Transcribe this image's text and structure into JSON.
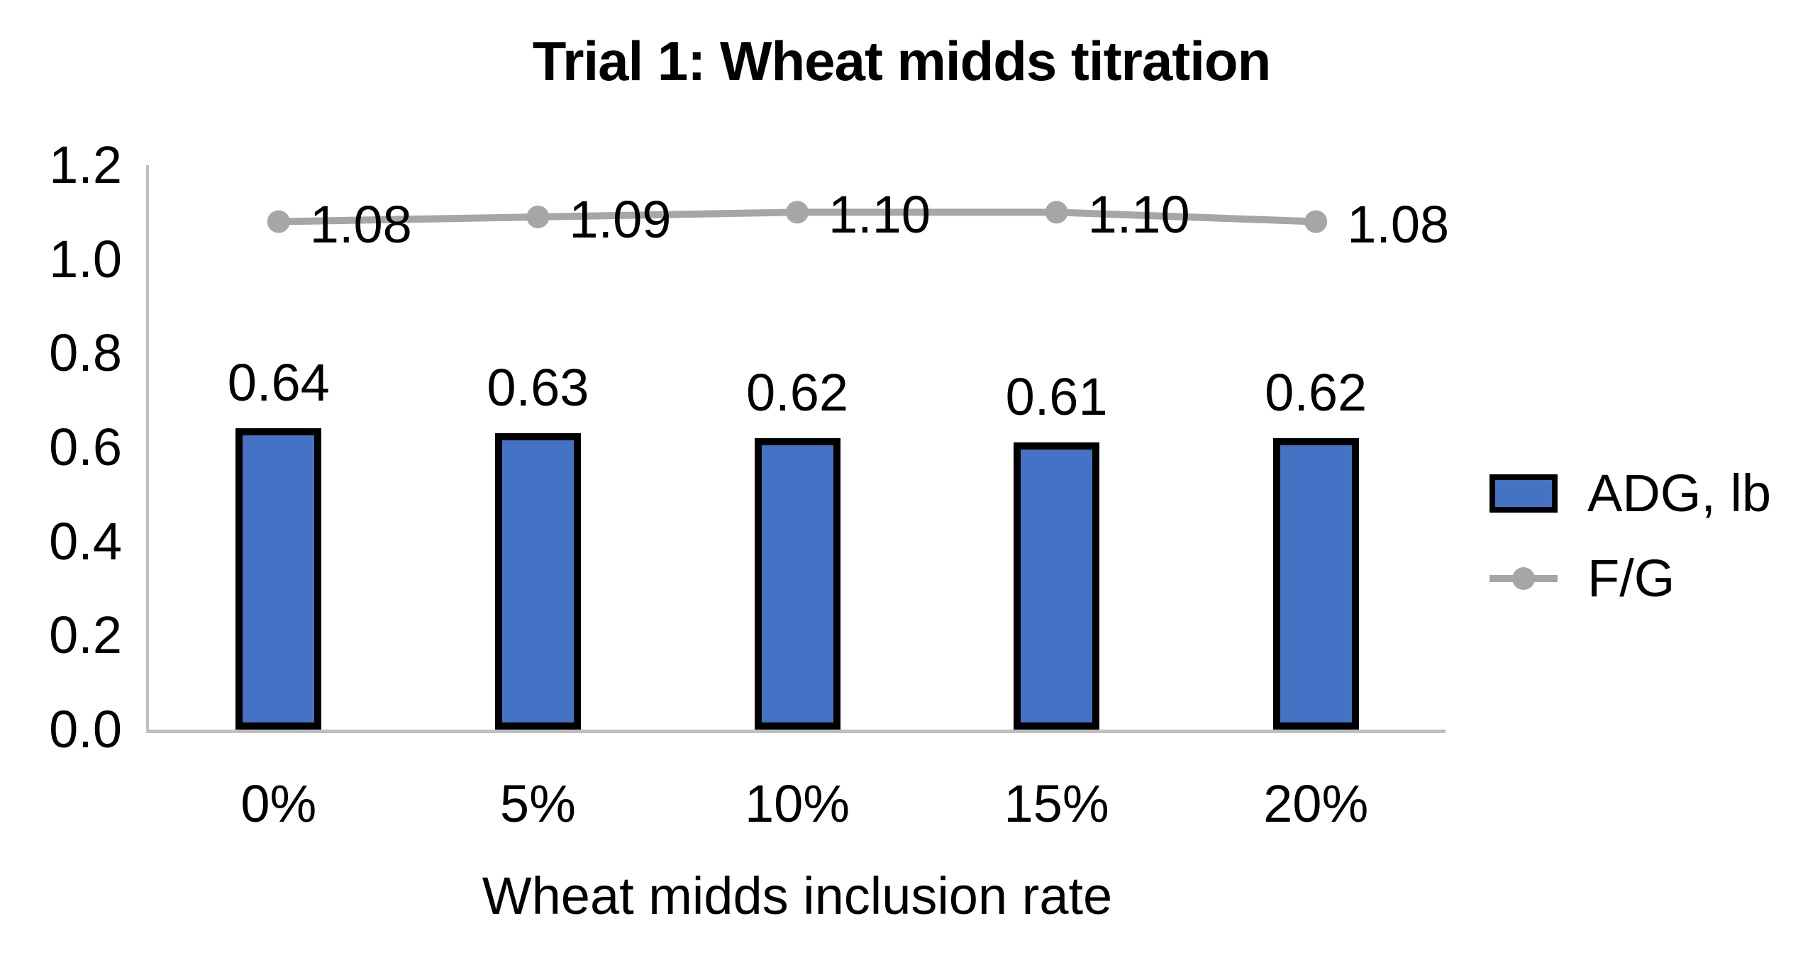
{
  "chart_data": {
    "type": "bar",
    "subtype": "bar-line-combo",
    "title": "Trial 1: Wheat midds titration",
    "xlabel": "Wheat midds inclusion rate",
    "ylabel": "",
    "categories": [
      "0%",
      "5%",
      "10%",
      "15%",
      "20%"
    ],
    "series": [
      {
        "name": "ADG, lb",
        "type": "bar",
        "values": [
          0.64,
          0.63,
          0.62,
          0.61,
          0.62
        ],
        "labels": [
          "0.64",
          "0.63",
          "0.62",
          "0.61",
          "0.62"
        ],
        "color": "#4472C4",
        "border_color": "#000000"
      },
      {
        "name": "F/G",
        "type": "line",
        "values": [
          1.08,
          1.09,
          1.1,
          1.1,
          1.08
        ],
        "labels": [
          "1.08",
          "1.09",
          "1.10",
          "1.10",
          "1.08"
        ],
        "color": "#A6A6A6"
      }
    ],
    "ylim": [
      0.0,
      1.2
    ],
    "y_ticks": [
      "0.0",
      "0.2",
      "0.4",
      "0.6",
      "0.8",
      "1.0",
      "1.2"
    ],
    "grid": false,
    "legend_position": "right",
    "axis_color": "#BFBFBF",
    "text_color": "#000000",
    "background_color": "#FFFFFF"
  }
}
